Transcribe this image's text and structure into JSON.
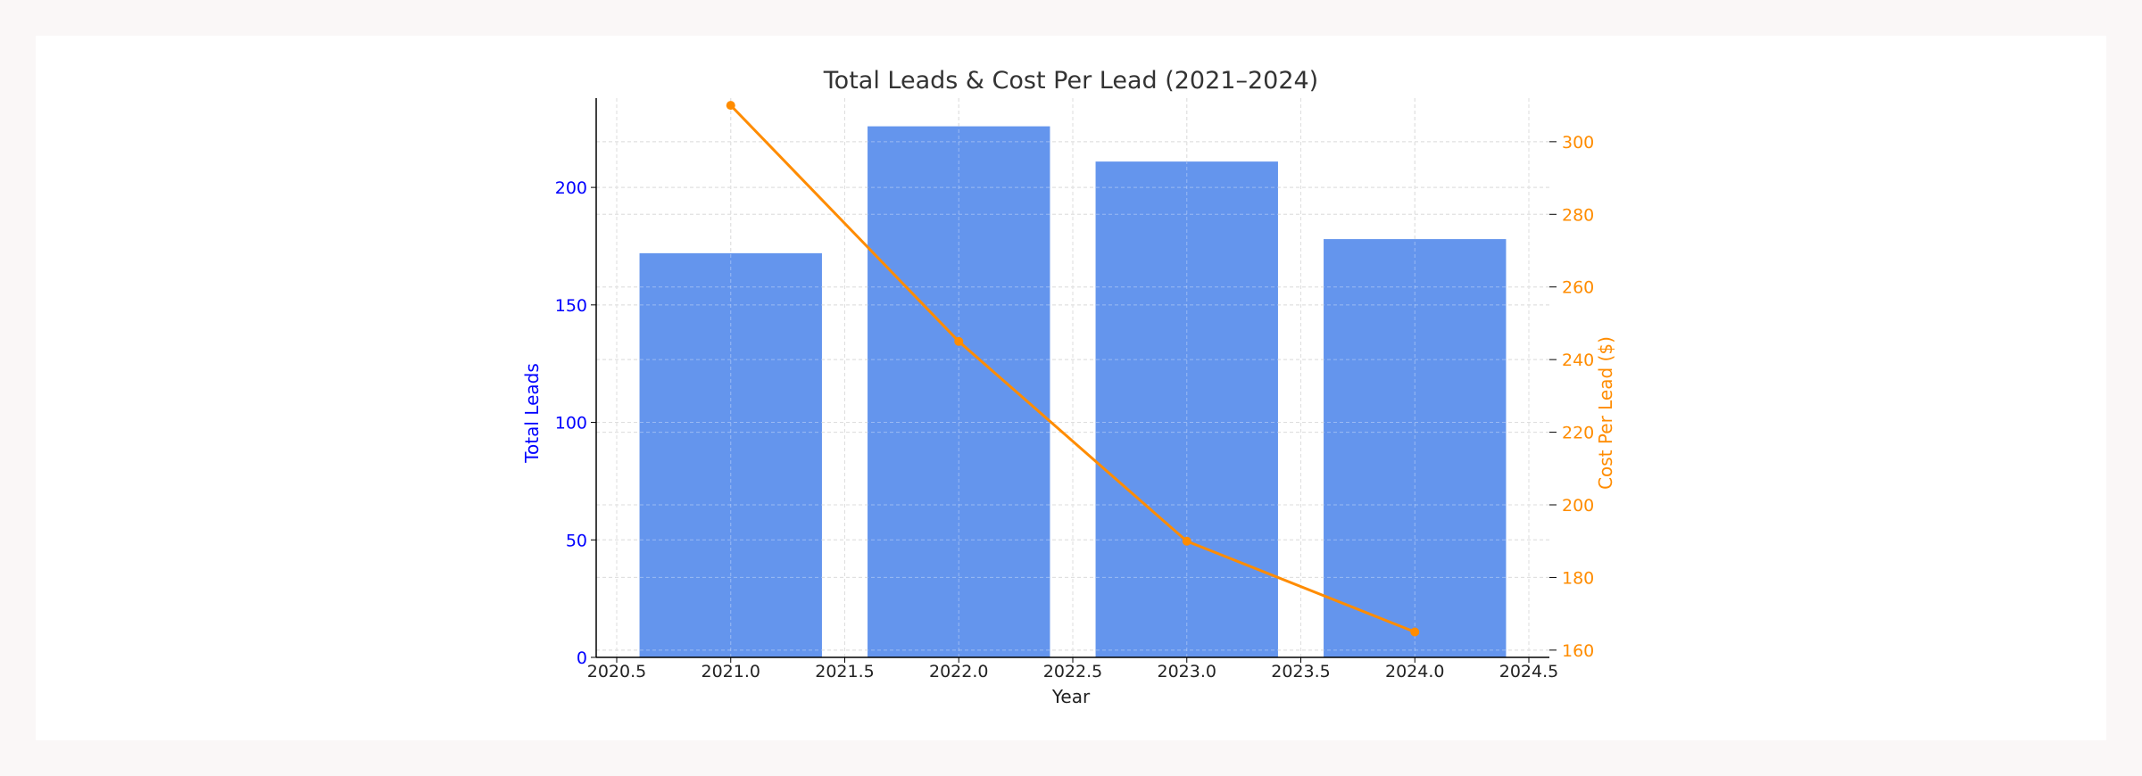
{
  "chart_data": {
    "type": "bar",
    "title": "Total Leads & Cost Per Lead (2021–2024)",
    "xlabel": "Year",
    "ylabel": "Total Leads",
    "y2label": "Cost Per Lead ($)",
    "x": [
      2021,
      2022,
      2023,
      2024
    ],
    "xlim": [
      2020.41,
      2024.59
    ],
    "ylim": [
      0,
      238
    ],
    "y2lim": [
      158,
      312
    ],
    "x_ticks": [
      "2020.5",
      "2021.0",
      "2021.5",
      "2022.0",
      "2022.5",
      "2023.0",
      "2023.5",
      "2024.0",
      "2024.5"
    ],
    "y_ticks": [
      "0",
      "50",
      "100",
      "150",
      "200"
    ],
    "y2_ticks": [
      "160",
      "180",
      "200",
      "220",
      "240",
      "260",
      "280",
      "300"
    ],
    "grid": true,
    "series": [
      {
        "name": "Total Leads",
        "type": "bar",
        "axis": "left",
        "values": [
          172,
          226,
          211,
          178
        ]
      },
      {
        "name": "Cost Per Lead ($)",
        "type": "line",
        "axis": "right",
        "values": [
          310,
          245,
          190,
          165
        ]
      }
    ],
    "colors": {
      "bars": "#6495ED",
      "line": "#FF8C00",
      "left_axis": "#0000FF",
      "right_axis": "#FF8C00",
      "grid": "#cccccc",
      "text": "#333333"
    }
  }
}
